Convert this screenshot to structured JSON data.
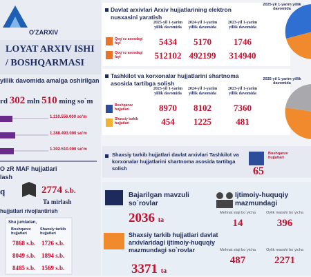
{
  "logo": {
    "name": "O'ZARXIV"
  },
  "header": {
    "line1": "LOYAT ARXIV ISHI",
    "line2": "/ BOSHQARMASI"
  },
  "budget": {
    "caption": "yillik davomida amalga oshirilgan",
    "prefix": "rd",
    "n1": "302",
    "u1": "mln",
    "n2": "510",
    "u2": "ming so`m",
    "bars": [
      "1.110.556.000 so'm",
      "1.388.493.000 so'm",
      "1.302.510.000 so'm"
    ]
  },
  "maf": {
    "title": "O zR MAF hujjatlari",
    "sub": "lash",
    "left": "q",
    "value": "2774",
    "unit": "s.b.",
    "caption": "Ta mirlash"
  },
  "dev": {
    "title": "hujjatlari rivojlantirish",
    "table": {
      "note": "Shu jumladan,",
      "head": [
        "Boshqaruv hujjatlari",
        "Shaxsiy tarkib hujjatlari"
      ],
      "rows": [
        [
          "7868 s.b.",
          "1726 s.b."
        ],
        [
          "8049 s.b.",
          "1894 s.b."
        ],
        [
          "8485 s.b.",
          "1569 s.b."
        ]
      ]
    }
  },
  "digitize": {
    "title": "Davlat arxivlari Arxiv hujjatlarining elektron nusxasini yaratish",
    "years": [
      "2025-yil 1-yarim yillik davomida",
      "2024-yil 1-yarim yillik davomida",
      "2023-yil 1-yarim yillik davomida"
    ],
    "rows": [
      {
        "label": "Qog`oz asosdagi fayl",
        "values": [
          5434,
          5170,
          1746
        ]
      },
      {
        "label": "Qog`oz asosdagi fayl",
        "values": [
          512102,
          492199,
          314940
        ]
      }
    ],
    "pie_label": "2025-yil 1-yarim yillik davomida"
  },
  "contracts": {
    "title": "Tashkilot va korxonalar hujjatlarini shartnoma asosida tartibga solish",
    "years": [
      "2025-yil 1-yarim yillik davomida",
      "2024-yil 1-yarim yillik davomida",
      "2023-yil 1-yarim yillik davomida"
    ],
    "rows": [
      {
        "label": "Boshqaruv hujjatlari",
        "values": [
          8970,
          8102,
          7360
        ]
      },
      {
        "label": "Shaxsiy tarkib hujjatlari",
        "values": [
          454,
          1225,
          481
        ]
      }
    ],
    "pie_label": "2025-yil 1-yarim yillik davomida"
  },
  "personnel": {
    "title": "Shaxsiy tarkib hujjatlari davlat arxivlari Tashkilot va korxonalar hujjatlarini shartnoma asosida tartibga solish",
    "label": "Boshqaruv hujjatlari",
    "value": 65
  },
  "requests": {
    "title": "Bajarilgan mavzuli so`rovlar",
    "value": 2036,
    "unit": "ta",
    "social_title": "Ijtimoiy-huquqiy mazmundagi",
    "social": [
      {
        "label": "Mehnat staji bo`yicha",
        "value": 14
      },
      {
        "label": "Oylik maoshi bo`yicha",
        "value": 396
      }
    ],
    "personnel_title": "Shaxsiy tarkib hujjatlari davlat arxivlaridagi ijtimoiy-huquqiy mazmundagi so`rovlar",
    "personnel_value": 3371,
    "personnel_unit": "ta",
    "personnel_split": [
      {
        "label": "Mehnat staji bo`yicha",
        "value": 487
      },
      {
        "label": "Oylik maoshi bo`yicha",
        "value": 2271
      }
    ]
  }
}
